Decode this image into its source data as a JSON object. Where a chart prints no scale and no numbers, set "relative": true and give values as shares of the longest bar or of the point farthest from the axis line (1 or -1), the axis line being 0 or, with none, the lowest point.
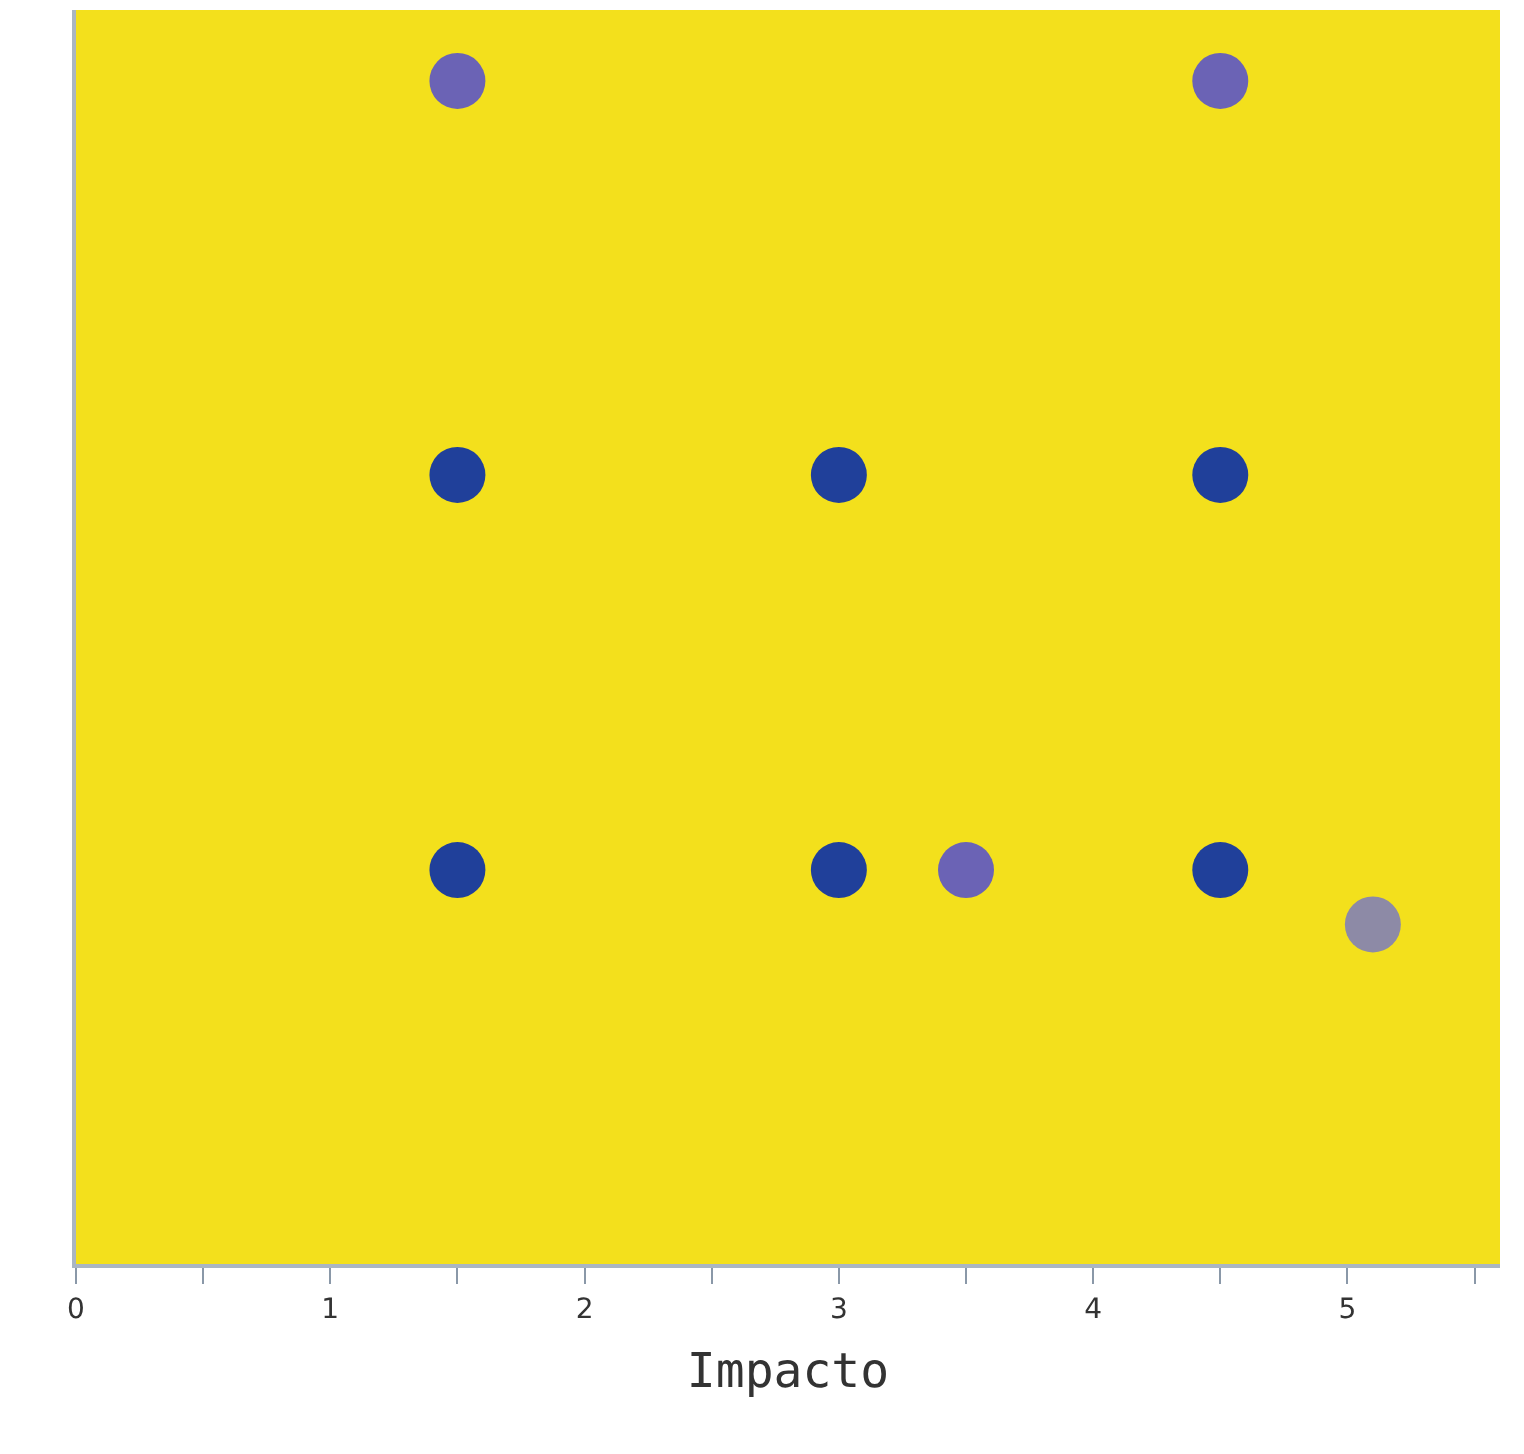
{
  "chart_data": {
    "type": "scatter",
    "xlabel": "Impacto",
    "relative": true,
    "tick_labels": "x",
    "marker": "circle",
    "grid": false,
    "xlim": [
      0,
      5.6
    ],
    "xticks": [
      0,
      {
        "value": 0.5,
        "label": null
      },
      1,
      {
        "value": 1.5,
        "label": null
      },
      2,
      {
        "value": 2.5,
        "label": null
      },
      3,
      {
        "value": 3.5,
        "label": null
      },
      4,
      {
        "value": 4.5,
        "label": null
      },
      5,
      {
        "value": 5.5,
        "label": null
      }
    ],
    "series": [
      {
        "color": "#20409a",
        "x": [
          1.5,
          3,
          4.5,
          1.5,
          3,
          4.5
        ],
        "values": [
          0.667,
          0.667,
          0.667,
          0.333,
          0.333,
          0.333
        ]
      },
      {
        "color": "#6b63b5",
        "x": [
          1.5,
          4.5,
          3.5
        ],
        "values": [
          1,
          1,
          0.333
        ]
      },
      {
        "color": "#8d8aa6",
        "x": [
          5.1
        ],
        "values": [
          0.287
        ]
      }
    ]
  }
}
